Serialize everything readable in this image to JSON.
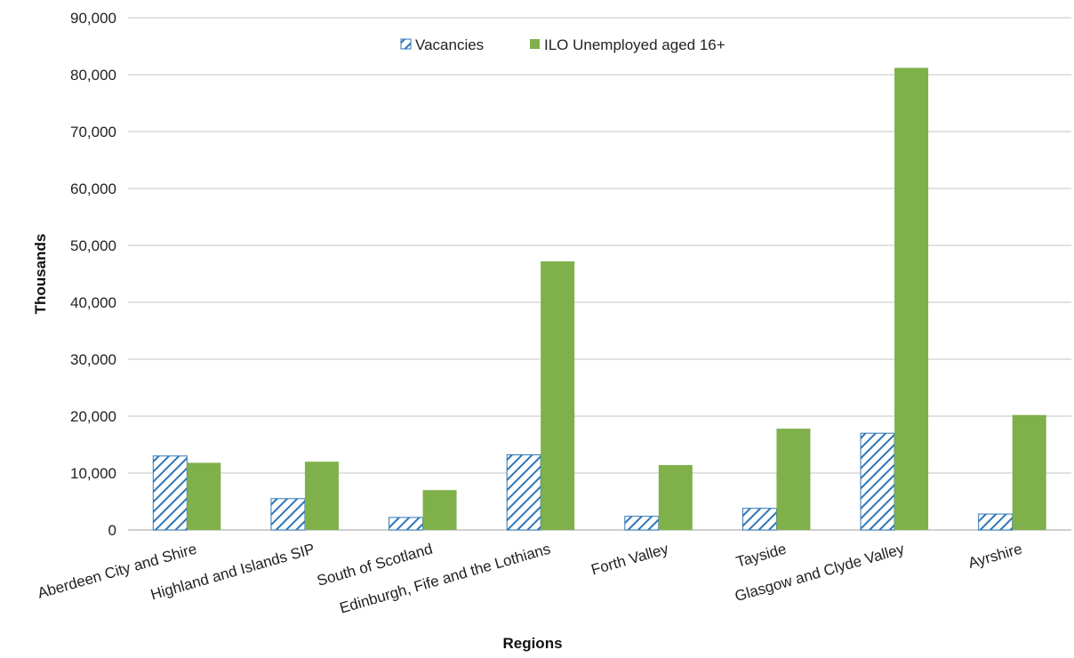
{
  "chart_data": {
    "type": "bar",
    "categories": [
      "Aberdeen City and Shire",
      "Highland and Islands SIP",
      "South of Scotland",
      "Edinburgh, Fife and the Lothians",
      "Forth Valley",
      "Tayside",
      "Glasgow and Clyde Valley",
      "Ayrshire"
    ],
    "series": [
      {
        "name": "Vacancies",
        "values": [
          13000,
          5500,
          2200,
          13200,
          2400,
          3800,
          17000,
          2800
        ],
        "pattern": "diagonal-hatch",
        "color": "#2e75b6"
      },
      {
        "name": "ILO Unemployed aged 16+",
        "values": [
          11800,
          12000,
          7000,
          47200,
          11400,
          17800,
          81200,
          20200
        ],
        "color": "#7fb04a"
      }
    ],
    "xlabel": "Regions",
    "ylabel": "Thousands",
    "ylim": [
      0,
      90000
    ],
    "yticks": [
      0,
      10000,
      20000,
      30000,
      40000,
      50000,
      60000,
      70000,
      80000,
      90000
    ],
    "ytick_labels": [
      "0",
      "10,000",
      "20,000",
      "30,000",
      "40,000",
      "50,000",
      "60,000",
      "70,000",
      "80,000",
      "90,000"
    ],
    "grid": true,
    "legend_position": "top-center"
  }
}
